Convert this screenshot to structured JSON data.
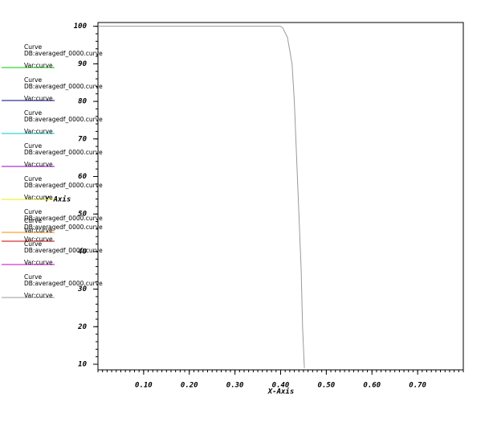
{
  "chart_data": {
    "type": "line",
    "x_label": "X-Axis",
    "y_label": "Y-Axis",
    "xlim": [
      0,
      0.8
    ],
    "ylim": [
      8.5,
      101
    ],
    "xticks": [
      {
        "value": 0.1,
        "label": "0.10"
      },
      {
        "value": 0.2,
        "label": "0.20"
      },
      {
        "value": 0.3,
        "label": "0.30"
      },
      {
        "value": 0.4,
        "label": "0.40"
      },
      {
        "value": 0.5,
        "label": "0.50"
      },
      {
        "value": 0.6,
        "label": "0.60"
      },
      {
        "value": 0.7,
        "label": "0.70"
      }
    ],
    "yticks": [
      10,
      20,
      30,
      40,
      50,
      60,
      70,
      80,
      90,
      100
    ],
    "series": [
      {
        "name": "Curve",
        "db": "DB:averagedf_0000.curve",
        "var": "Var:curve",
        "color": "#00cc00",
        "x": [],
        "values": []
      },
      {
        "name": "Curve",
        "db": "DB:averagedf_0000.curve",
        "var": "Var:curve",
        "color": "#000080",
        "x": [],
        "values": []
      },
      {
        "name": "Curve",
        "db": "DB:averagedf_0000.curve",
        "var": "Var:curve",
        "color": "#00cccc",
        "x": [],
        "values": []
      },
      {
        "name": "Curve",
        "db": "DB:averagedf_0000.curve",
        "var": "Var:curve",
        "color": "#9900cc",
        "x": [],
        "values": []
      },
      {
        "name": "Curve",
        "db": "DB:averagedf_0000.curve",
        "var": "Var:curve",
        "color": "#eeee00",
        "x": [],
        "values": []
      },
      {
        "name": "Curve",
        "db": "DB:averagedf_0000.curve",
        "var": "Var:curve",
        "color": "#ff8800",
        "x": [],
        "values": []
      },
      {
        "name": "Curve",
        "db": "DB:averagedf_0000.curve",
        "var": "Var:curve",
        "color": "#cc0000",
        "x": [],
        "values": []
      },
      {
        "name": "Curve",
        "db": "DB:averagedf_0000.curve",
        "var": "Var:curve",
        "color": "#cc00cc",
        "x": [],
        "values": []
      },
      {
        "name": "Curve",
        "db": "DB:averagedf_0000.curve",
        "var": "Var:curve",
        "color": "#999999",
        "x": [
          0,
          0.4,
          0.405,
          0.415,
          0.425,
          0.43,
          0.435,
          0.44,
          0.445,
          0.448,
          0.452
        ],
        "values": [
          100,
          100,
          99.5,
          97,
          90,
          80,
          65,
          50,
          35,
          20,
          9
        ]
      }
    ]
  }
}
